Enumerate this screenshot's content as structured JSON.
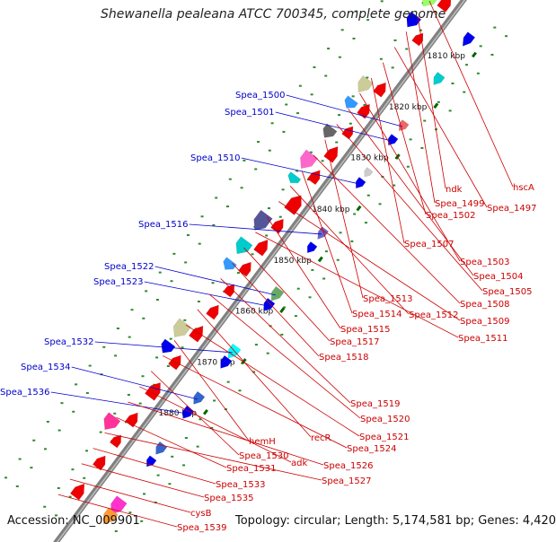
{
  "title": "Shewanella pealeana ATCC 700345, complete genome",
  "footer": {
    "accession": "Accession: NC_009901",
    "summary": "Topology: circular; Length: 5,174,581 bp; Genes: 4,420"
  },
  "colors": {
    "backbone": "#808080",
    "forward_label": "#0000cc",
    "reverse_label": "#cc0000",
    "tick": "#006600"
  },
  "ticks": [
    "1810 kbp",
    "1820 kbp",
    "1830 kbp",
    "1840 kbp",
    "1850 kbp",
    "1860 kbp",
    "1870 kbp",
    "1880 kbp"
  ],
  "forward_labels": [
    "Spea_1500",
    "Spea_1501",
    "Spea_1510",
    "Spea_1516",
    "Spea_1522",
    "Spea_1523",
    "Spea_1532",
    "Spea_1534",
    "Spea_1536"
  ],
  "reverse_labels": [
    "hscA",
    "ndk",
    "Spea_1499",
    "Spea_1497",
    "Spea_1502",
    "Spea_1507",
    "Spea_1503",
    "Spea_1504",
    "Spea_1505",
    "Spea_1513",
    "Spea_1508",
    "Spea_1514",
    "Spea_1512",
    "Spea_1509",
    "Spea_1515",
    "Spea_1511",
    "Spea_1517",
    "Spea_1518",
    "Spea_1519",
    "Spea_1520",
    "recR",
    "Spea_1521",
    "hemH",
    "Spea_1524",
    "Spea_1530",
    "adk",
    "Spea_1526",
    "Spea_1531",
    "Spea_1527",
    "Spea_1533",
    "Spea_1535",
    "cysB",
    "Spea_1539"
  ]
}
